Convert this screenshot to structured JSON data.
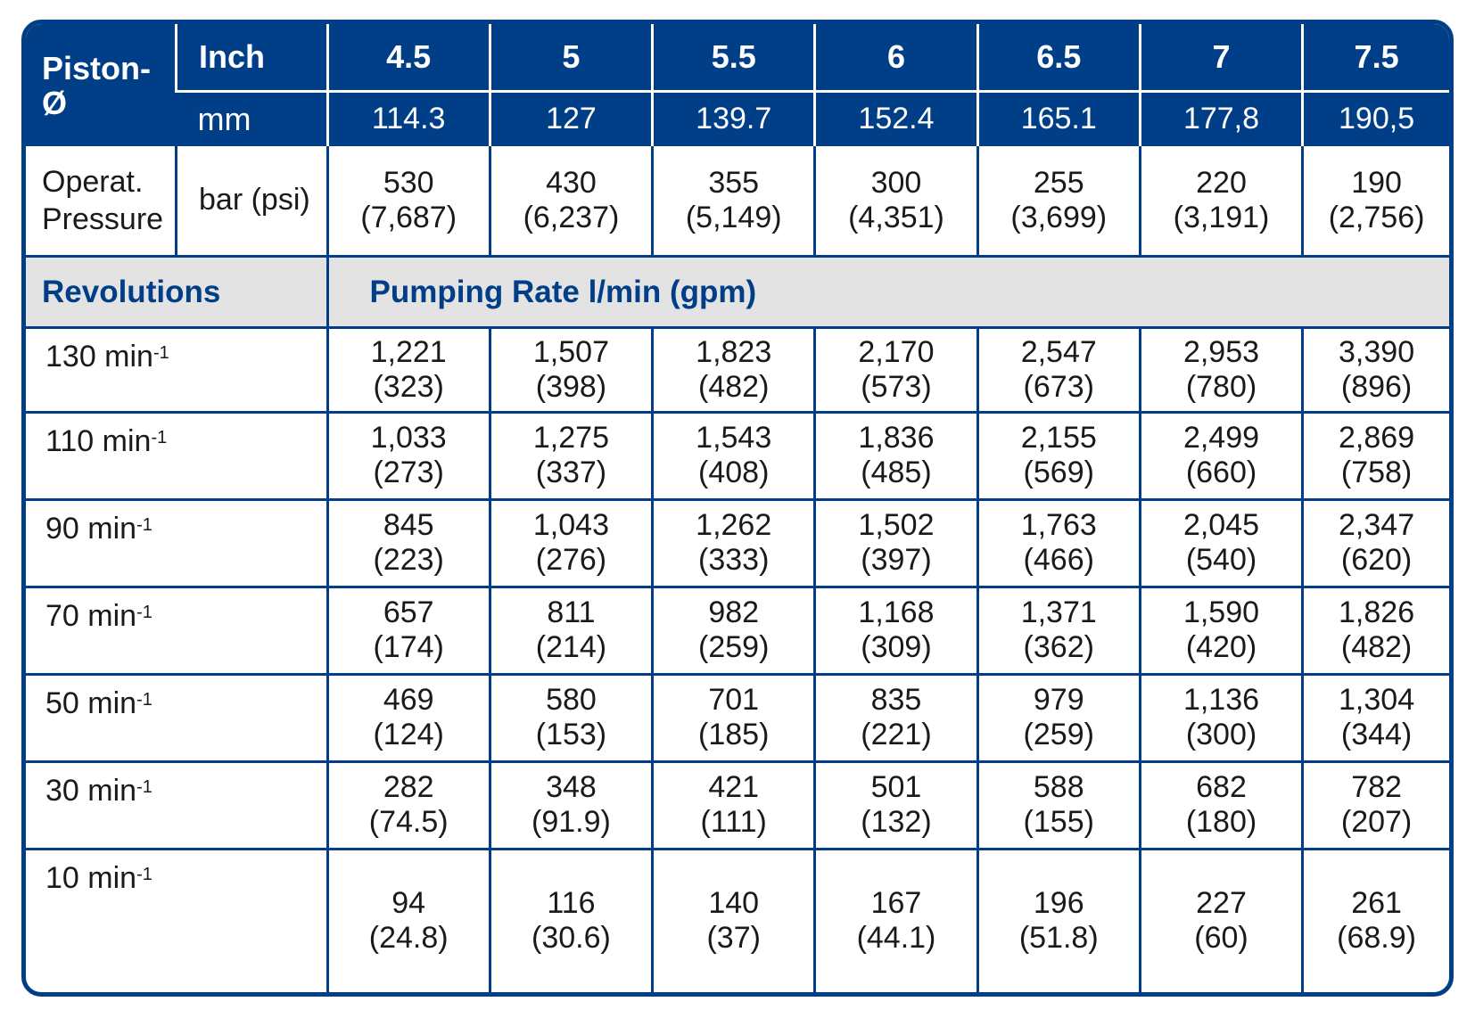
{
  "header": {
    "piston_label": "Piston-Ø",
    "inch_label": "Inch",
    "mm_label": "mm",
    "inch_values": [
      "4.5",
      "5",
      "5.5",
      "6",
      "6.5",
      "7",
      "7.5"
    ],
    "mm_values": [
      "114.3",
      "127",
      "139.7",
      "152.4",
      "165.1",
      "177,8",
      "190,5"
    ]
  },
  "pressure": {
    "label_line1": "Operat.",
    "label_line2": "Pressure",
    "unit": "bar (psi)",
    "values": [
      {
        "bar": "530",
        "psi": "(7,687)"
      },
      {
        "bar": "430",
        "psi": "(6,237)"
      },
      {
        "bar": "355",
        "psi": "(5,149)"
      },
      {
        "bar": "300",
        "psi": "(4,351)"
      },
      {
        "bar": "255",
        "psi": "(3,699)"
      },
      {
        "bar": "220",
        "psi": "(3,191)"
      },
      {
        "bar": "190",
        "psi": "(2,756)"
      }
    ]
  },
  "section": {
    "revolutions_label": "Revolutions",
    "rate_label": "Pumping Rate l/min (gpm)"
  },
  "rows": [
    {
      "rpm": "130 min",
      "exp": "-1",
      "cells": [
        {
          "lpm": "1,221",
          "gpm": "(323)"
        },
        {
          "lpm": "1,507",
          "gpm": "(398)"
        },
        {
          "lpm": "1,823",
          "gpm": "(482)"
        },
        {
          "lpm": "2,170",
          "gpm": "(573)"
        },
        {
          "lpm": "2,547",
          "gpm": "(673)"
        },
        {
          "lpm": "2,953",
          "gpm": "(780)"
        },
        {
          "lpm": "3,390",
          "gpm": "(896)"
        }
      ]
    },
    {
      "rpm": "110 min",
      "exp": "-1",
      "cells": [
        {
          "lpm": "1,033",
          "gpm": "(273)"
        },
        {
          "lpm": "1,275",
          "gpm": "(337)"
        },
        {
          "lpm": "1,543",
          "gpm": "(408)"
        },
        {
          "lpm": "1,836",
          "gpm": "(485)"
        },
        {
          "lpm": "2,155",
          "gpm": "(569)"
        },
        {
          "lpm": "2,499",
          "gpm": "(660)"
        },
        {
          "lpm": "2,869",
          "gpm": "(758)"
        }
      ]
    },
    {
      "rpm": "90 min",
      "exp": "-1",
      "cells": [
        {
          "lpm": "845",
          "gpm": "(223)"
        },
        {
          "lpm": "1,043",
          "gpm": "(276)"
        },
        {
          "lpm": "1,262",
          "gpm": "(333)"
        },
        {
          "lpm": "1,502",
          "gpm": "(397)"
        },
        {
          "lpm": "1,763",
          "gpm": "(466)"
        },
        {
          "lpm": "2,045",
          "gpm": "(540)"
        },
        {
          "lpm": "2,347",
          "gpm": "(620)"
        }
      ]
    },
    {
      "rpm": "70 min",
      "exp": "-1",
      "cells": [
        {
          "lpm": "657",
          "gpm": "(174)"
        },
        {
          "lpm": "811",
          "gpm": "(214)"
        },
        {
          "lpm": "982",
          "gpm": "(259)"
        },
        {
          "lpm": "1,168",
          "gpm": "(309)"
        },
        {
          "lpm": "1,371",
          "gpm": "(362)"
        },
        {
          "lpm": "1,590",
          "gpm": "(420)"
        },
        {
          "lpm": "1,826",
          "gpm": "(482)"
        }
      ]
    },
    {
      "rpm": "50 min",
      "exp": "-1",
      "cells": [
        {
          "lpm": "469",
          "gpm": "(124)"
        },
        {
          "lpm": "580",
          "gpm": "(153)"
        },
        {
          "lpm": "701",
          "gpm": "(185)"
        },
        {
          "lpm": "835",
          "gpm": "(221)"
        },
        {
          "lpm": "979",
          "gpm": "(259)"
        },
        {
          "lpm": "1,136",
          "gpm": "(300)"
        },
        {
          "lpm": "1,304",
          "gpm": "(344)"
        }
      ]
    },
    {
      "rpm": "30 min",
      "exp": "-1",
      "cells": [
        {
          "lpm": "282",
          "gpm": "(74.5)"
        },
        {
          "lpm": "348",
          "gpm": "(91.9)"
        },
        {
          "lpm": "421",
          "gpm": "(111)"
        },
        {
          "lpm": "501",
          "gpm": "(132)"
        },
        {
          "lpm": "588",
          "gpm": "(155)"
        },
        {
          "lpm": "682",
          "gpm": "(180)"
        },
        {
          "lpm": "782",
          "gpm": "(207)"
        }
      ]
    },
    {
      "rpm": "10 min",
      "exp": "-1",
      "cells": [
        {
          "lpm": "94",
          "gpm": "(24.8)"
        },
        {
          "lpm": "116",
          "gpm": "(30.6)"
        },
        {
          "lpm": "140",
          "gpm": "(37)"
        },
        {
          "lpm": "167",
          "gpm": "(44.1)"
        },
        {
          "lpm": "196",
          "gpm": "(51.8)"
        },
        {
          "lpm": "227",
          "gpm": "(60)"
        },
        {
          "lpm": "261",
          "gpm": "(68.9)"
        }
      ]
    }
  ],
  "colors": {
    "header_blue": "#003f87",
    "section_grey": "#e3e3e3",
    "text": "#1a1a1a"
  }
}
